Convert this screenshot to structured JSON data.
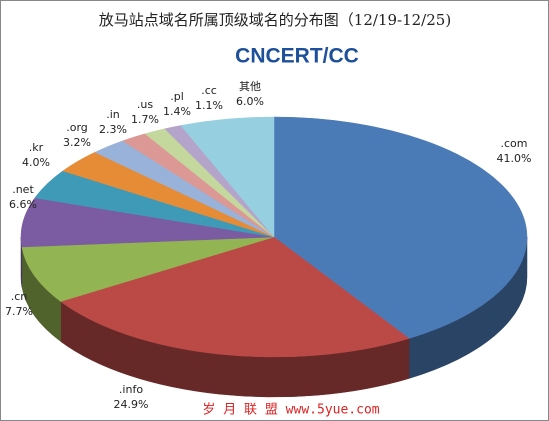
{
  "chart_data": {
    "type": "pie3d",
    "title": "放马站点域名所属顶级域名的分布图（12/19-12/25)",
    "logo": "CNCERT/CC",
    "watermark": "岁 月 联 盟 www.5yue.com",
    "categories": [
      ".com",
      ".info",
      ".cn",
      ".net",
      ".kr",
      ".org",
      ".in",
      ".us",
      ".pl",
      ".cc",
      "其他"
    ],
    "values": [
      41.0,
      24.9,
      7.7,
      6.6,
      4.0,
      3.2,
      2.3,
      1.7,
      1.4,
      1.1,
      6.0
    ],
    "value_labels": [
      "41.0%",
      "24.9%",
      "7.7%",
      "6.6%",
      "4.0%",
      "3.2%",
      "2.3%",
      "1.7%",
      "1.4%",
      "1.1%",
      "6.0%"
    ],
    "colors": [
      "#4a7bb7",
      "#bb4a47",
      "#93b452",
      "#7b5ba1",
      "#3e9ab6",
      "#e68b36",
      "#98b2d9",
      "#db9895",
      "#c4d89e",
      "#b5a4c9",
      "#95cfe0"
    ]
  }
}
